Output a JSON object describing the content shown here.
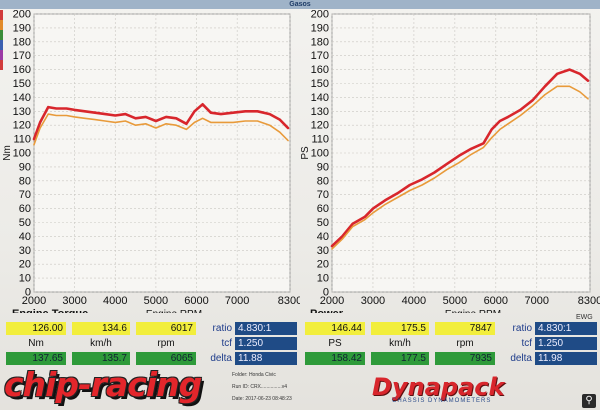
{
  "header": {
    "title": "Gasos"
  },
  "left_strip_colors": [
    "#d13b3b",
    "#e28b2a",
    "#3a8d3a",
    "#3a5fb0",
    "#9b3aa6",
    "#d13b3b"
  ],
  "chart_data": [
    {
      "type": "line",
      "title": "Engine Torque",
      "xlabel": "Engine RPM",
      "ylabel": "Nm",
      "xlim": [
        2000,
        8300
      ],
      "ylim": [
        0,
        200
      ],
      "x_ticks": [
        2000,
        3000,
        4000,
        5000,
        6000,
        7000,
        8300
      ],
      "y_ticks": [
        0,
        10,
        20,
        30,
        40,
        50,
        60,
        70,
        80,
        90,
        100,
        110,
        120,
        130,
        140,
        150,
        160,
        170,
        180,
        190,
        200
      ],
      "grid": true,
      "series": [
        {
          "color": "#d8262c",
          "x": [
            2000,
            2150,
            2350,
            2550,
            2800,
            3000,
            3250,
            3500,
            3750,
            4000,
            4250,
            4500,
            4750,
            5000,
            5250,
            5500,
            5750,
            5950,
            6150,
            6350,
            6600,
            6900,
            7200,
            7500,
            7800,
            8050,
            8250
          ],
          "y": [
            110,
            122,
            133,
            132,
            132,
            131,
            130,
            129,
            128,
            127,
            128,
            125,
            126,
            123,
            126,
            125,
            121,
            130,
            135,
            129,
            128,
            129,
            130,
            130,
            128,
            124,
            118
          ]
        },
        {
          "color": "#e89a3a",
          "x": [
            2000,
            2150,
            2350,
            2550,
            2800,
            3000,
            3250,
            3500,
            3750,
            4000,
            4250,
            4500,
            4750,
            5000,
            5250,
            5500,
            5750,
            5950,
            6150,
            6350,
            6600,
            6900,
            7200,
            7500,
            7800,
            8050,
            8250
          ],
          "y": [
            106,
            118,
            128,
            127,
            127,
            126,
            125,
            124,
            123,
            122,
            123,
            120,
            121,
            118,
            121,
            120,
            117,
            122,
            125,
            122,
            122,
            122,
            123,
            123,
            120,
            115,
            109
          ]
        }
      ]
    },
    {
      "type": "line",
      "title": "Power",
      "xlabel": "Engine RPM",
      "ylabel": "PS",
      "xlim": [
        2000,
        8300
      ],
      "ylim": [
        0,
        200
      ],
      "x_ticks": [
        2000,
        3000,
        4000,
        5000,
        6000,
        7000,
        8300
      ],
      "y_ticks": [
        0,
        10,
        20,
        30,
        40,
        50,
        60,
        70,
        80,
        90,
        100,
        110,
        120,
        130,
        140,
        150,
        160,
        170,
        180,
        190,
        200
      ],
      "grid": true,
      "series": [
        {
          "color": "#d8262c",
          "x": [
            2000,
            2250,
            2500,
            2800,
            3000,
            3300,
            3600,
            3900,
            4200,
            4500,
            4800,
            5100,
            5400,
            5700,
            5900,
            6100,
            6300,
            6600,
            6900,
            7200,
            7500,
            7800,
            8050,
            8250
          ],
          "y": [
            33,
            40,
            49,
            54,
            60,
            66,
            71,
            77,
            81,
            86,
            92,
            98,
            103,
            107,
            117,
            123,
            126,
            131,
            138,
            148,
            157,
            160,
            157,
            152
          ]
        },
        {
          "color": "#e89a3a",
          "x": [
            2000,
            2250,
            2500,
            2800,
            3000,
            3300,
            3600,
            3900,
            4200,
            4500,
            4800,
            5100,
            5400,
            5700,
            5900,
            6100,
            6300,
            6600,
            6900,
            7200,
            7500,
            7800,
            8050,
            8250
          ],
          "y": [
            31,
            38,
            47,
            52,
            57,
            63,
            68,
            73,
            77,
            82,
            88,
            93,
            99,
            104,
            111,
            117,
            121,
            127,
            134,
            142,
            148,
            148,
            144,
            139
          ]
        }
      ]
    }
  ],
  "left_readout": {
    "yellow": [
      "126.00",
      "134.6",
      "6017"
    ],
    "units": [
      "Nm",
      "km/h",
      "rpm"
    ],
    "green": [
      "137.65",
      "135.7",
      "6065"
    ],
    "labels": [
      "ratio",
      "tcf",
      "delta"
    ],
    "values": [
      "4.830:1",
      "1.250",
      "11.88"
    ]
  },
  "right_readout": {
    "yellow": [
      "146.44",
      "175.5",
      "7847"
    ],
    "units": [
      "PS",
      "km/h",
      "rpm"
    ],
    "green": [
      "158.42",
      "177.5",
      "7935"
    ],
    "labels": [
      "ratio",
      "tcf",
      "delta"
    ],
    "values": [
      "4.830:1",
      "1.250",
      "11.98"
    ]
  },
  "meta": {
    "folder": "Folder: Honda Civic",
    "run_id": "Run ID: CRX...............v4",
    "date": "Date: 2017-06-23 08:48:23"
  },
  "logos": {
    "left": "chip-racing",
    "right": "Dynapack",
    "right_sub": "CHASSIS DYNAMOMETERS"
  },
  "ewg": "EWG",
  "corner_icon": "search-icon"
}
